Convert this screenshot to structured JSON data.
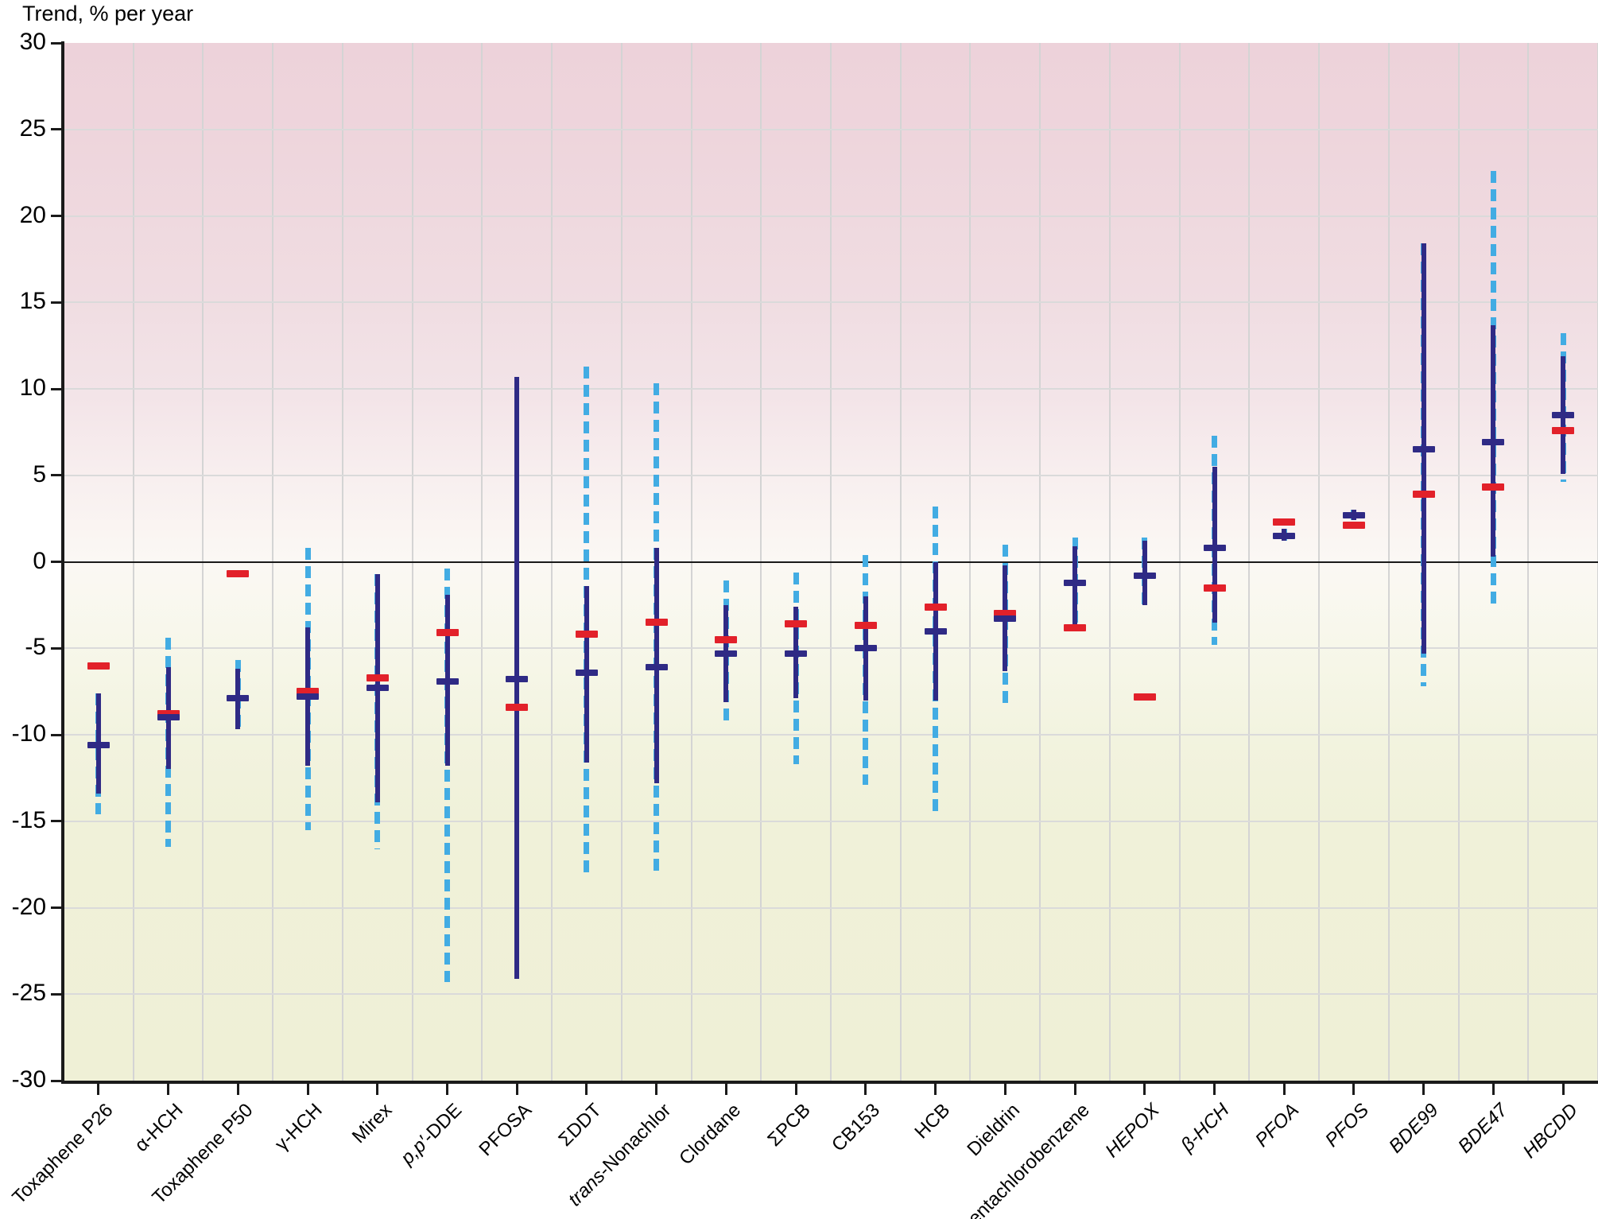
{
  "title": "Trend, % per year",
  "colors": {
    "ci_solid_navy": "#2f2a85",
    "ci_dashed_blue": "#42ace3",
    "red_marker": "#e2212a",
    "axis_black": "#1a1a1a",
    "bg_top_pink": "#edd2da",
    "bg_bottom_green": "#eff0d6"
  },
  "chart_data": {
    "type": "error-bar",
    "title": "Trend, % per year",
    "ylabel": "Trend, % per year",
    "ylim": [
      -30,
      30
    ],
    "y_tick_step": 5,
    "y_tick_labels": [
      "30",
      "25",
      "20",
      "15",
      "10",
      "5",
      "0",
      "-5",
      "-10",
      "-15",
      "-20",
      "-25",
      "-30"
    ],
    "grid": true,
    "legend_position": "none",
    "categories": [
      "Toxaphene P26",
      "α-HCH",
      "Toxaphene P50",
      "γ-HCH",
      "Mirex",
      "p,p′-DDE",
      "PFOSA",
      "ΣDDT",
      "trans-Nonachlor",
      "Clordane",
      "ΣPCB",
      "CB153",
      "HCB",
      "Dieldrin",
      "Pentachlorobenzene",
      "HEPOX",
      "β-HCH",
      "PFOA",
      "PFOS",
      "BDE99",
      "BDE47",
      "HBCDD"
    ],
    "points": [
      {
        "label": "Toxaphene P26",
        "label_parts": [
          {
            "t": "Toxaphene P26",
            "i": false
          }
        ],
        "ci_dashed": [
          -7.6,
          -14.6
        ],
        "ci_solid": [
          -7.6,
          -13.4
        ],
        "mean": -10.6,
        "red": -6.0
      },
      {
        "label": "α-HCH",
        "label_parts": [
          {
            "t": "α-HCH",
            "i": false
          }
        ],
        "ci_dashed": [
          -4.4,
          -16.5
        ],
        "ci_solid": [
          -6.1,
          -12.0
        ],
        "mean": -9.0,
        "red": -8.8
      },
      {
        "label": "Toxaphene P50",
        "label_parts": [
          {
            "t": "Toxaphene P50",
            "i": false
          }
        ],
        "ci_dashed": [
          -5.7,
          -9.8
        ],
        "ci_solid": [
          -6.2,
          -9.7
        ],
        "mean": -7.9,
        "red": -0.7
      },
      {
        "label": "γ-HCH",
        "label_parts": [
          {
            "t": "γ-HCH",
            "i": false
          }
        ],
        "ci_dashed": [
          0.8,
          -15.5
        ],
        "ci_solid": [
          -3.8,
          -11.8
        ],
        "mean": -7.8,
        "red": -7.5
      },
      {
        "label": "Mirex",
        "label_parts": [
          {
            "t": "Mirex",
            "i": false
          }
        ],
        "ci_dashed": [
          -0.7,
          -16.6
        ],
        "ci_solid": [
          -0.7,
          -13.9
        ],
        "mean": -7.3,
        "red": -6.7
      },
      {
        "label": "p,p′-DDE",
        "label_parts": [
          {
            "t": "p,p′-",
            "i": true
          },
          {
            "t": "DDE",
            "i": false
          }
        ],
        "ci_dashed": [
          -0.4,
          -24.3
        ],
        "ci_solid": [
          -1.9,
          -11.8
        ],
        "mean": -6.9,
        "red": -4.1
      },
      {
        "label": "PFOSA",
        "label_parts": [
          {
            "t": "PFOSA",
            "i": false
          }
        ],
        "ci_dashed": null,
        "ci_solid": [
          10.7,
          -24.1
        ],
        "mean": -6.8,
        "red": -8.4
      },
      {
        "label": "ΣDDT",
        "label_parts": [
          {
            "t": "ΣDDT",
            "i": false
          }
        ],
        "ci_dashed": [
          11.3,
          -18.2
        ],
        "ci_solid": [
          -1.4,
          -11.6
        ],
        "mean": -6.4,
        "red": -4.2
      },
      {
        "label": "trans-Nonachlor",
        "label_parts": [
          {
            "t": "trans",
            "i": true
          },
          {
            "t": "-Nonachlor",
            "i": false
          }
        ],
        "ci_dashed": [
          10.3,
          -18.1
        ],
        "ci_solid": [
          0.8,
          -12.8
        ],
        "mean": -6.1,
        "red": -3.5
      },
      {
        "label": "Clordane",
        "label_parts": [
          {
            "t": "Clordane",
            "i": false
          }
        ],
        "ci_dashed": [
          -1.1,
          -9.3
        ],
        "ci_solid": [
          -2.5,
          -8.1
        ],
        "mean": -5.3,
        "red": -4.5
      },
      {
        "label": "ΣPCB",
        "label_parts": [
          {
            "t": "ΣPCB",
            "i": false
          }
        ],
        "ci_dashed": [
          -0.6,
          -11.7
        ],
        "ci_solid": [
          -2.6,
          -7.9
        ],
        "mean": -5.3,
        "red": -3.6
      },
      {
        "label": "CB153",
        "label_parts": [
          {
            "t": "CB153",
            "i": false
          }
        ],
        "ci_dashed": [
          0.4,
          -12.9
        ],
        "ci_solid": [
          -2.0,
          -8.0
        ],
        "mean": -5.0,
        "red": -3.7
      },
      {
        "label": "HCB",
        "label_parts": [
          {
            "t": "HCB",
            "i": false
          }
        ],
        "ci_dashed": [
          3.2,
          -14.7
        ],
        "ci_solid": [
          0.0,
          -8.0
        ],
        "mean": -4.0,
        "red": -2.6
      },
      {
        "label": "Dieldrin",
        "label_parts": [
          {
            "t": "Dieldrin",
            "i": false
          }
        ],
        "ci_dashed": [
          1.0,
          -8.3
        ],
        "ci_solid": [
          -0.2,
          -6.3
        ],
        "mean": -3.3,
        "red": -3.0
      },
      {
        "label": "Pentachlorobenzene",
        "label_parts": [
          {
            "t": "Pentachlorobenzene",
            "i": false
          }
        ],
        "ci_dashed": [
          1.4,
          -3.8
        ],
        "ci_solid": [
          0.9,
          -3.7
        ],
        "mean": -1.2,
        "red": -3.8
      },
      {
        "label": "HEPOX",
        "label_parts": [
          {
            "t": "HEPOX",
            "i": true
          }
        ],
        "ci_dashed": [
          1.4,
          -2.5
        ],
        "ci_solid": [
          1.2,
          -2.5
        ],
        "mean": -0.8,
        "red": -7.8
      },
      {
        "label": "β-HCH",
        "label_parts": [
          {
            "t": "β-HCH",
            "i": true
          }
        ],
        "ci_dashed": [
          7.3,
          -4.8
        ],
        "ci_solid": [
          5.5,
          -3.5
        ],
        "mean": 0.8,
        "red": -1.5
      },
      {
        "label": "PFOA",
        "label_parts": [
          {
            "t": "PFOA",
            "i": true
          }
        ],
        "ci_dashed": [
          1.9,
          1.2
        ],
        "ci_solid": [
          1.9,
          1.2
        ],
        "mean": 1.5,
        "red": 2.3
      },
      {
        "label": "PFOS",
        "label_parts": [
          {
            "t": "PFOS",
            "i": true
          }
        ],
        "ci_dashed": [
          3.0,
          2.4
        ],
        "ci_solid": [
          3.0,
          2.4
        ],
        "mean": 2.7,
        "red": 2.1
      },
      {
        "label": "BDE99",
        "label_parts": [
          {
            "t": "BDE99",
            "i": true
          }
        ],
        "ci_dashed": [
          18.4,
          -7.2
        ],
        "ci_solid": [
          18.4,
          -5.3
        ],
        "mean": 6.5,
        "red": 3.9
      },
      {
        "label": "BDE47",
        "label_parts": [
          {
            "t": "BDE47",
            "i": true
          }
        ],
        "ci_dashed": [
          22.6,
          -2.6
        ],
        "ci_solid": [
          13.7,
          0.3
        ],
        "mean": 6.9,
        "red": 4.3
      },
      {
        "label": "HBCDD",
        "label_parts": [
          {
            "t": "HBCDD",
            "i": true
          }
        ],
        "ci_dashed": [
          13.2,
          4.6
        ],
        "ci_solid": [
          11.9,
          5.1
        ],
        "mean": 8.5,
        "red": 7.6
      }
    ]
  }
}
